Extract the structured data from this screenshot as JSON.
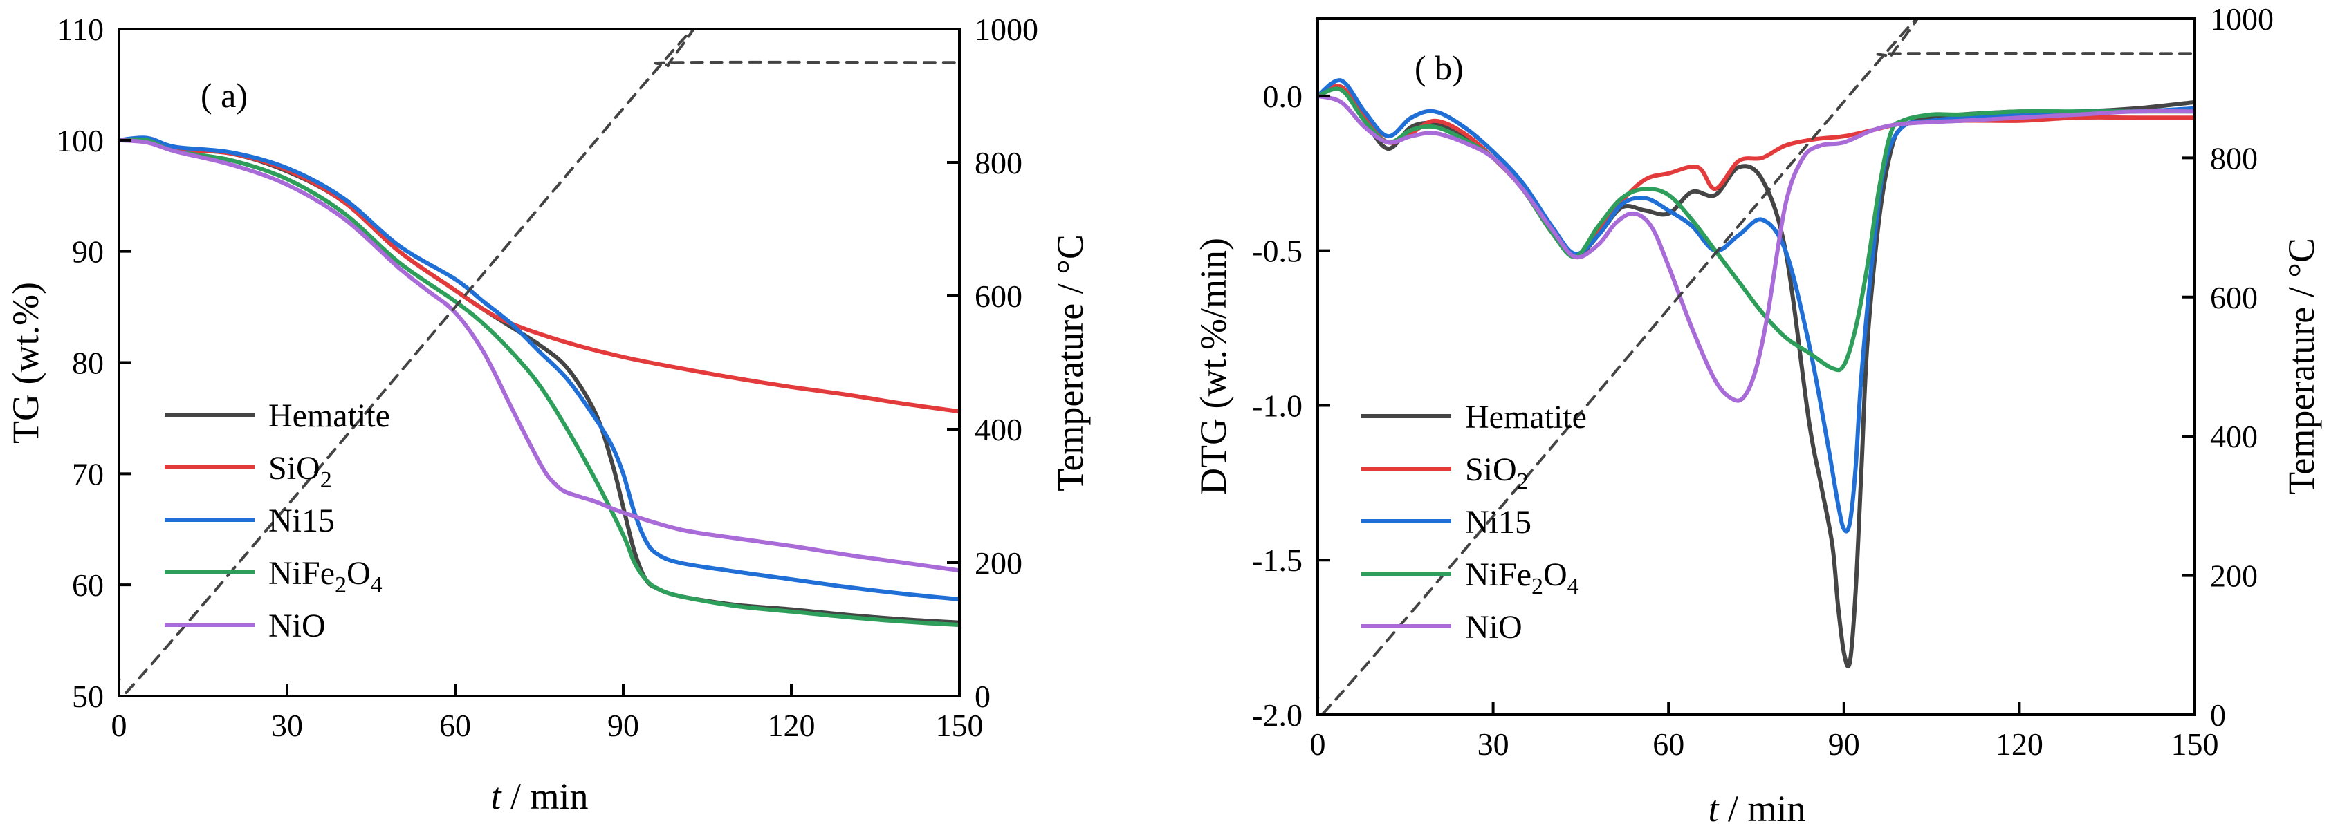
{
  "figure": {
    "panels": [
      "a",
      "b"
    ]
  },
  "chart_data": [
    {
      "type": "line",
      "panel_label": "( a)",
      "title": "",
      "xlabel_var": "t",
      "xlabel_unit": " / min",
      "ylabel": "TG (wt.%)",
      "y2label": "Temperature / °C",
      "xlim": [
        0,
        150
      ],
      "ylim": [
        50,
        110
      ],
      "y2lim": [
        0,
        1000
      ],
      "xticks": [
        0,
        30,
        60,
        90,
        120,
        150
      ],
      "yticks": [
        50,
        60,
        70,
        80,
        90,
        100,
        110
      ],
      "y2ticks": [
        0,
        200,
        400,
        600,
        800,
        1000
      ],
      "legend_position": "lower-left",
      "series": [
        {
          "name": "Hematite",
          "label_main": "Hematite",
          "label_sub": "",
          "label_tail": "",
          "label_sub2": "",
          "color": "#454545",
          "x": [
            0,
            5,
            10,
            20,
            30,
            40,
            50,
            60,
            65,
            70,
            75,
            80,
            85,
            88,
            90,
            92,
            94,
            96,
            100,
            110,
            120,
            130,
            140,
            150
          ],
          "y": [
            100,
            100,
            99.2,
            98.8,
            97.2,
            94.5,
            90,
            86.5,
            84.8,
            83.2,
            81.6,
            79.5,
            75.5,
            71,
            67,
            63,
            60.5,
            59.7,
            59,
            58.2,
            57.8,
            57.3,
            56.9,
            56.6
          ]
        },
        {
          "name": "SiO2",
          "label_main": "SiO",
          "label_sub": "2",
          "label_tail": "",
          "label_sub2": "",
          "color": "#e33b3b",
          "x": [
            0,
            5,
            10,
            20,
            30,
            40,
            50,
            60,
            65,
            70,
            80,
            90,
            100,
            110,
            120,
            130,
            140,
            150
          ],
          "y": [
            100,
            100,
            99.2,
            98.8,
            97.3,
            94.5,
            90,
            86.5,
            84.8,
            83.5,
            81.8,
            80.5,
            79.5,
            78.6,
            77.8,
            77.1,
            76.3,
            75.6
          ]
        },
        {
          "name": "Ni15",
          "label_main": "Ni15",
          "label_sub": "",
          "label_tail": "",
          "label_sub2": "",
          "color": "#1f6fd6",
          "x": [
            0,
            5,
            10,
            20,
            30,
            40,
            50,
            60,
            65,
            70,
            75,
            80,
            85,
            88,
            90,
            92,
            94,
            96,
            100,
            110,
            120,
            130,
            140,
            150
          ],
          "y": [
            100,
            100.2,
            99.4,
            98.9,
            97.5,
            94.8,
            90.5,
            87.5,
            85.5,
            83.5,
            81,
            78.5,
            75,
            72.5,
            70,
            66.5,
            64,
            62.8,
            62,
            61.2,
            60.5,
            59.8,
            59.2,
            58.7
          ]
        },
        {
          "name": "NiFe2O4",
          "label_main": "NiFe",
          "label_sub": "2",
          "label_tail": "O",
          "label_sub2": "4",
          "color": "#2e9e5b",
          "x": [
            0,
            5,
            10,
            20,
            30,
            40,
            50,
            60,
            65,
            70,
            75,
            80,
            85,
            90,
            92,
            94,
            96,
            100,
            110,
            120,
            130,
            140,
            150
          ],
          "y": [
            100,
            100,
            99,
            98.2,
            96.5,
            93.5,
            89,
            85.5,
            83.5,
            81,
            78,
            74,
            69.5,
            64.5,
            62,
            60.5,
            59.7,
            59,
            58.1,
            57.6,
            57.1,
            56.7,
            56.4
          ]
        },
        {
          "name": "NiO",
          "label_main": "NiO",
          "label_sub": "",
          "label_tail": "",
          "label_sub2": "",
          "color": "#a86bd8",
          "x": [
            0,
            5,
            10,
            20,
            30,
            40,
            50,
            55,
            60,
            65,
            70,
            73,
            76,
            78,
            80,
            85,
            90,
            100,
            110,
            120,
            130,
            140,
            150
          ],
          "y": [
            100,
            99.8,
            99,
            97.8,
            96,
            93,
            88.5,
            86.5,
            84.5,
            81,
            76,
            73,
            70.2,
            69,
            68.3,
            67.5,
            66.5,
            65,
            64.2,
            63.5,
            62.7,
            62,
            61.3
          ]
        },
        {
          "name": "Temperature",
          "label_main": "",
          "label_sub": "",
          "label_tail": "",
          "label_sub2": "",
          "color": "#444444",
          "dashed": true,
          "axis": "y2",
          "x": [
            0,
            5,
            95,
            98,
            100,
            150
          ],
          "y": [
            25,
            40,
            930,
            945,
            950,
            950
          ]
        }
      ]
    },
    {
      "type": "line",
      "panel_label": "( b)",
      "title": "",
      "xlabel_var": "t",
      "xlabel_unit": " / min",
      "ylabel": "DTG (wt.%/min)",
      "y2label": "Temperature / °C",
      "xlim": [
        0,
        150
      ],
      "ylim": [
        -2.0,
        0.25
      ],
      "y2lim": [
        0,
        1000
      ],
      "xticks": [
        0,
        30,
        60,
        90,
        120,
        150
      ],
      "yticks": [
        -2.0,
        -1.5,
        -1.0,
        -0.5,
        0.0
      ],
      "ytick_labels": [
        "-2.0",
        "-1.5",
        "-1.0",
        "-0.5",
        "0.0"
      ],
      "y2ticks": [
        0,
        200,
        400,
        600,
        800,
        1000
      ],
      "legend_position": "lower-left",
      "series": [
        {
          "name": "Hematite",
          "label_main": "Hematite",
          "label_sub": "",
          "label_tail": "",
          "label_sub2": "",
          "color": "#454545",
          "x": [
            0,
            4,
            8,
            12,
            16,
            20,
            25,
            30,
            35,
            40,
            44,
            48,
            52,
            56,
            60,
            64,
            68,
            72,
            76,
            80,
            84,
            86,
            88,
            89,
            90,
            91,
            92,
            93,
            94,
            96,
            98,
            100,
            105,
            110,
            120,
            130,
            140,
            150
          ],
          "y": [
            0,
            0.02,
            -0.08,
            -0.17,
            -0.1,
            -0.09,
            -0.13,
            -0.2,
            -0.3,
            -0.44,
            -0.52,
            -0.45,
            -0.36,
            -0.37,
            -0.38,
            -0.31,
            -0.32,
            -0.23,
            -0.27,
            -0.5,
            -1.05,
            -1.25,
            -1.45,
            -1.65,
            -1.8,
            -1.83,
            -1.6,
            -1.2,
            -0.8,
            -0.4,
            -0.18,
            -0.1,
            -0.07,
            -0.06,
            -0.05,
            -0.05,
            -0.04,
            -0.02
          ]
        },
        {
          "name": "SiO2",
          "label_main": "SiO",
          "label_sub": "2",
          "label_tail": "",
          "label_sub2": "",
          "color": "#e33b3b",
          "x": [
            0,
            4,
            8,
            12,
            16,
            20,
            25,
            30,
            35,
            40,
            44,
            48,
            52,
            56,
            60,
            65,
            68,
            72,
            76,
            80,
            85,
            90,
            95,
            100,
            110,
            120,
            130,
            140,
            150
          ],
          "y": [
            0,
            0.03,
            -0.07,
            -0.15,
            -0.12,
            -0.08,
            -0.12,
            -0.2,
            -0.3,
            -0.44,
            -0.52,
            -0.44,
            -0.34,
            -0.27,
            -0.25,
            -0.23,
            -0.3,
            -0.21,
            -0.2,
            -0.16,
            -0.14,
            -0.13,
            -0.11,
            -0.09,
            -0.08,
            -0.08,
            -0.07,
            -0.07,
            -0.07
          ]
        },
        {
          "name": "Ni15",
          "label_main": "Ni15",
          "label_sub": "",
          "label_tail": "",
          "label_sub2": "",
          "color": "#1f6fd6",
          "x": [
            0,
            4,
            8,
            12,
            16,
            20,
            25,
            30,
            35,
            40,
            44,
            48,
            52,
            56,
            60,
            64,
            68,
            72,
            76,
            80,
            84,
            87,
            89,
            90,
            91,
            92,
            93,
            95,
            97,
            100,
            105,
            110,
            120,
            130,
            140,
            150
          ],
          "y": [
            0,
            0.05,
            -0.05,
            -0.13,
            -0.07,
            -0.05,
            -0.1,
            -0.18,
            -0.28,
            -0.42,
            -0.51,
            -0.45,
            -0.35,
            -0.33,
            -0.37,
            -0.42,
            -0.5,
            -0.45,
            -0.4,
            -0.5,
            -0.8,
            -1.1,
            -1.32,
            -1.4,
            -1.38,
            -1.2,
            -0.9,
            -0.5,
            -0.22,
            -0.1,
            -0.08,
            -0.07,
            -0.06,
            -0.05,
            -0.05,
            -0.04
          ]
        },
        {
          "name": "NiFe2O4",
          "label_main": "NiFe",
          "label_sub": "2",
          "label_tail": "O",
          "label_sub2": "4",
          "color": "#2e9e5b",
          "x": [
            0,
            4,
            8,
            12,
            16,
            20,
            25,
            30,
            35,
            40,
            44,
            48,
            52,
            56,
            60,
            64,
            68,
            72,
            76,
            80,
            84,
            88,
            90,
            92,
            94,
            96,
            98,
            100,
            105,
            110,
            120,
            130,
            140,
            150
          ],
          "y": [
            0,
            0.02,
            -0.08,
            -0.15,
            -0.11,
            -0.1,
            -0.14,
            -0.2,
            -0.3,
            -0.44,
            -0.52,
            -0.42,
            -0.33,
            -0.3,
            -0.32,
            -0.4,
            -0.5,
            -0.6,
            -0.7,
            -0.78,
            -0.83,
            -0.88,
            -0.87,
            -0.75,
            -0.55,
            -0.3,
            -0.12,
            -0.08,
            -0.06,
            -0.06,
            -0.05,
            -0.05,
            -0.05,
            -0.05
          ]
        },
        {
          "name": "NiO",
          "label_main": "NiO",
          "label_sub": "",
          "label_tail": "",
          "label_sub2": "",
          "color": "#a86bd8",
          "x": [
            0,
            4,
            8,
            12,
            16,
            20,
            25,
            30,
            35,
            40,
            44,
            48,
            51,
            54,
            57,
            60,
            64,
            68,
            71,
            73,
            75,
            77,
            80,
            83,
            86,
            90,
            95,
            100,
            110,
            120,
            130,
            140,
            150
          ],
          "y": [
            0,
            -0.02,
            -0.1,
            -0.15,
            -0.13,
            -0.12,
            -0.15,
            -0.2,
            -0.3,
            -0.43,
            -0.52,
            -0.48,
            -0.41,
            -0.38,
            -0.42,
            -0.55,
            -0.75,
            -0.92,
            -0.98,
            -0.97,
            -0.88,
            -0.7,
            -0.35,
            -0.2,
            -0.16,
            -0.15,
            -0.11,
            -0.09,
            -0.08,
            -0.07,
            -0.06,
            -0.05,
            -0.05
          ]
        },
        {
          "name": "Temperature",
          "label_main": "",
          "label_sub": "",
          "label_tail": "",
          "label_sub2": "",
          "color": "#444444",
          "dashed": true,
          "axis": "y2",
          "x": [
            0,
            5,
            95,
            98,
            100,
            150
          ],
          "y": [
            25,
            40,
            930,
            945,
            950,
            950
          ]
        }
      ]
    }
  ]
}
